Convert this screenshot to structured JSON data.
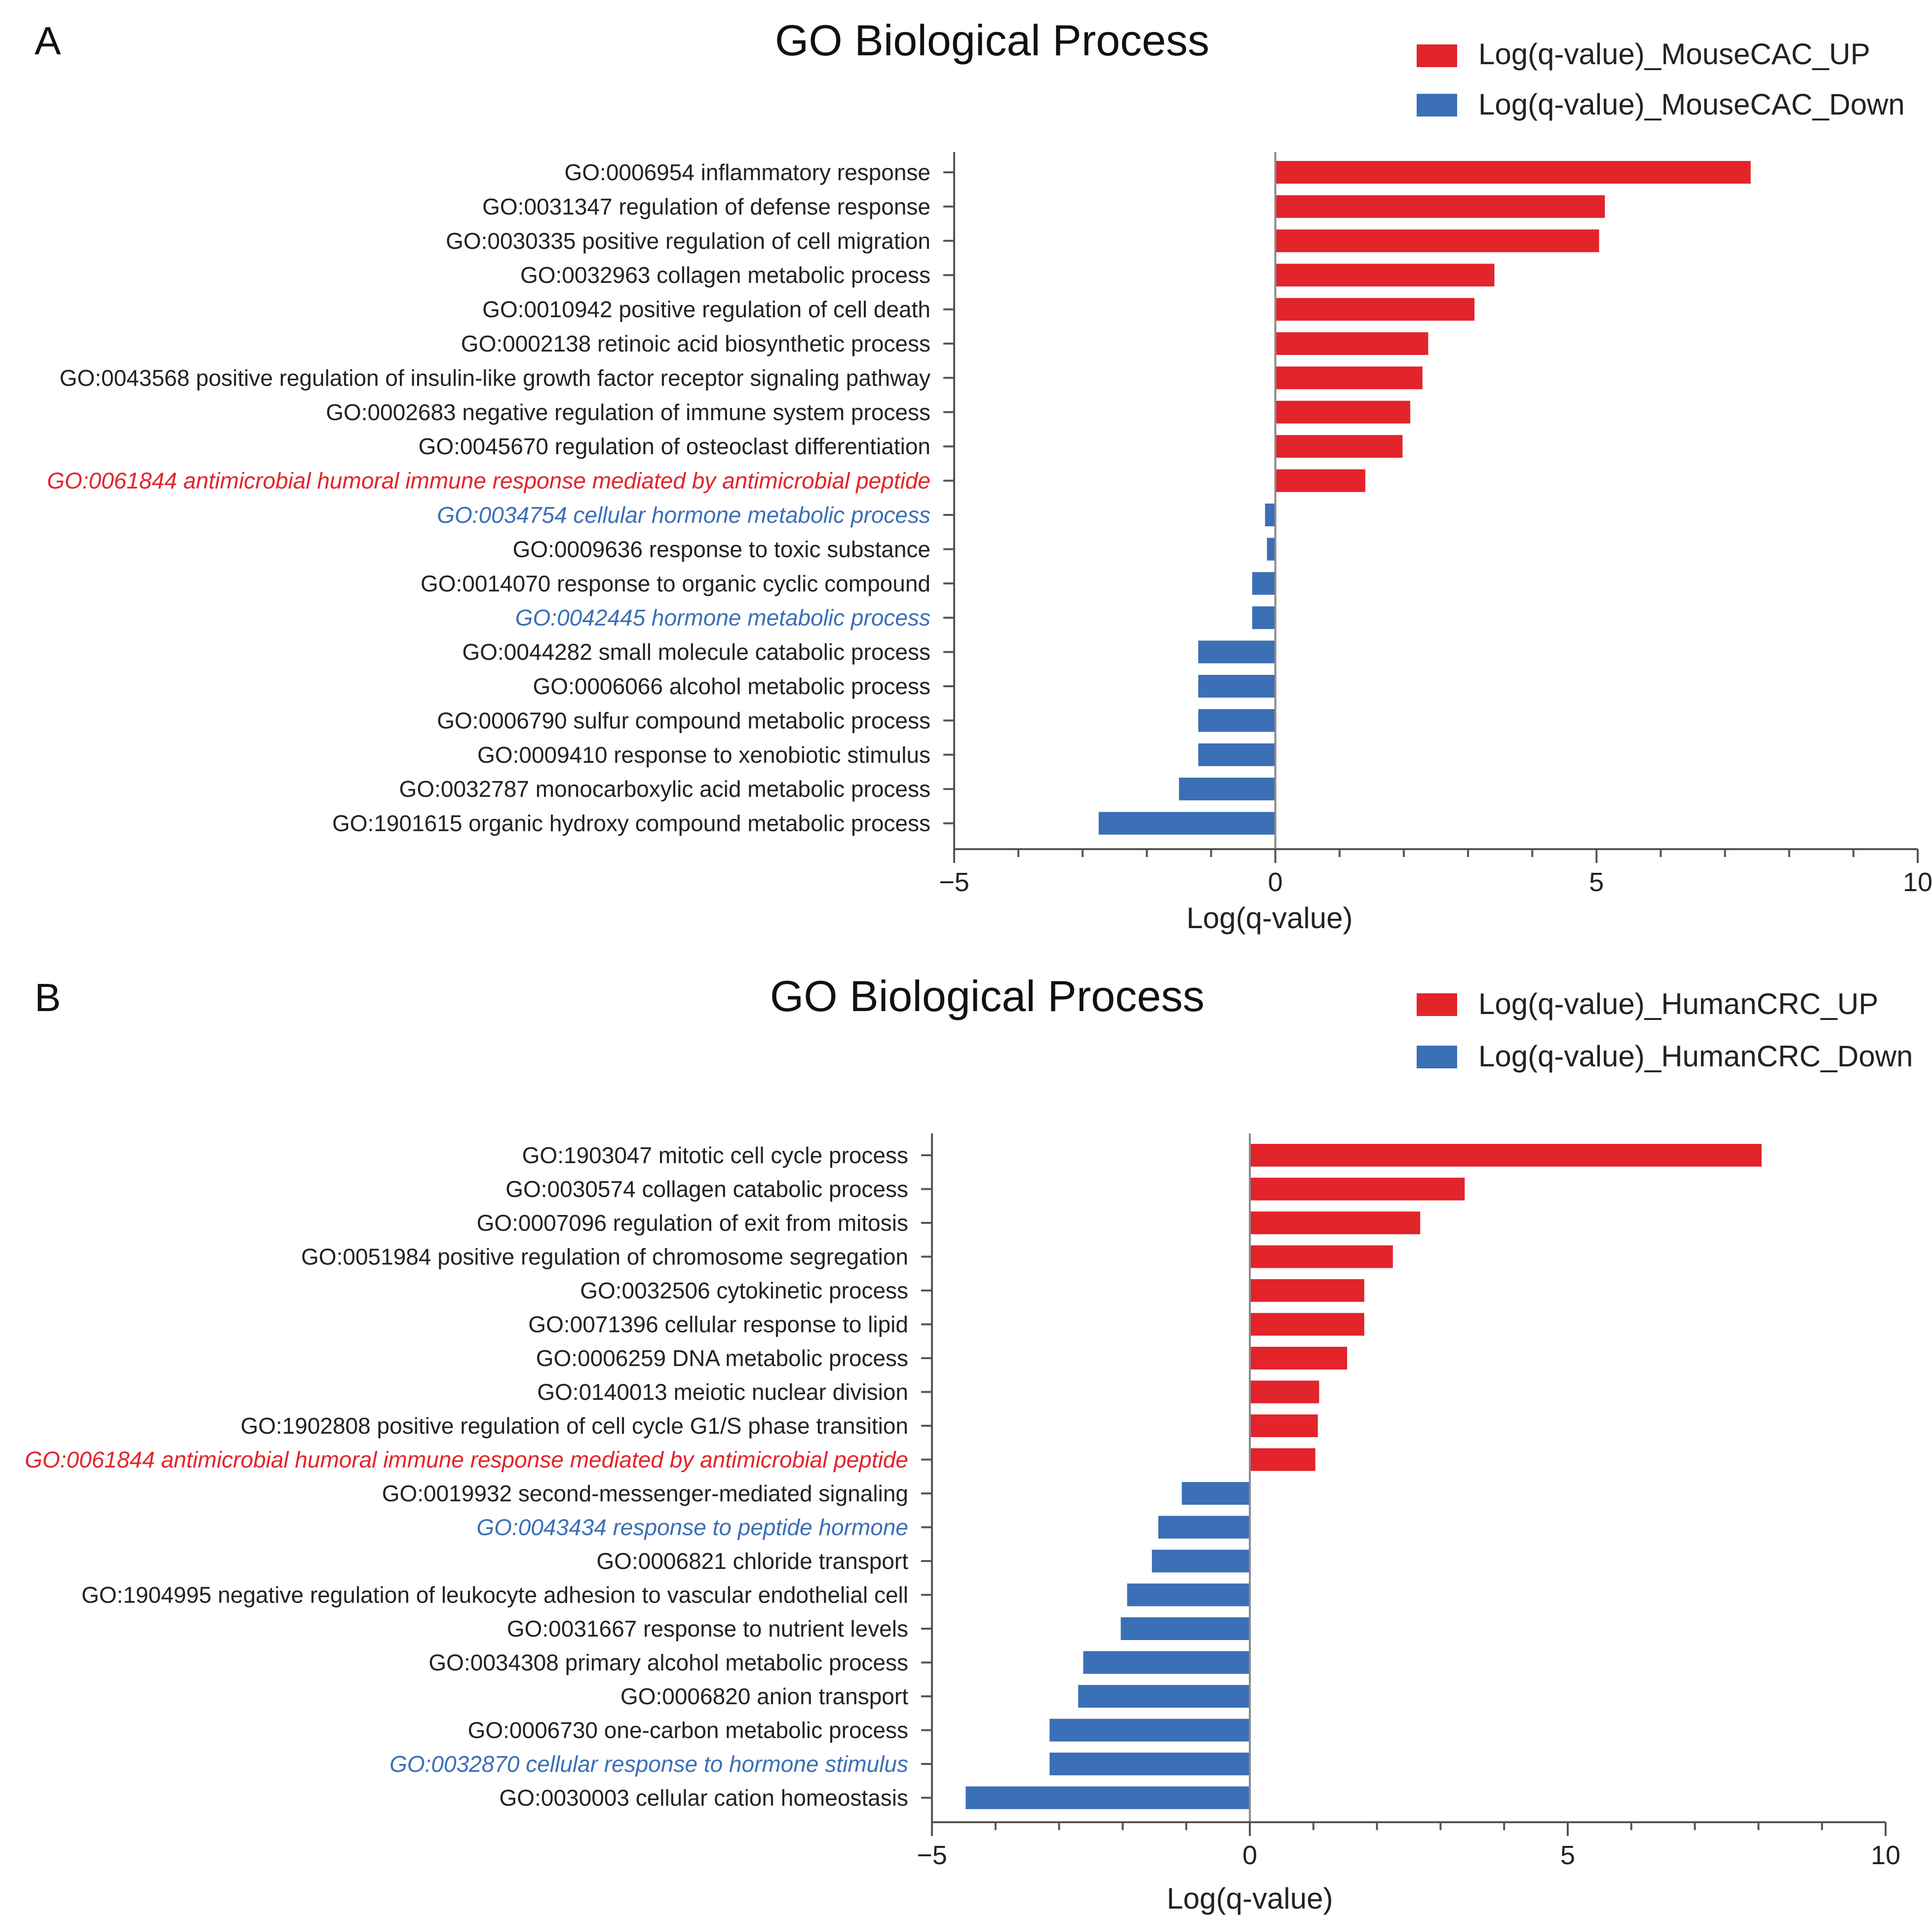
{
  "colors": {
    "up": "#e3242b",
    "down": "#3b6fb6",
    "axis": "#555555",
    "text": "#222222"
  },
  "chart_data": [
    {
      "panel_label": "A",
      "type": "bar",
      "orientation": "horizontal",
      "title": "GO Biological Process",
      "xlabel": "Log(q-value)",
      "ylabel": "",
      "xlim": [
        -5,
        10
      ],
      "xticks": [
        -5,
        0,
        5,
        10
      ],
      "xtick_labels": [
        "−5",
        "0",
        "5",
        "10"
      ],
      "legend_position": "top-right",
      "series": [
        {
          "name": "Log(q-value)_MouseCAC_UP",
          "color": "#e3242b"
        },
        {
          "name": "Log(q-value)_MouseCAC_Down",
          "color": "#3b6fb6"
        }
      ],
      "categories": [
        "GO:0006954 inflammatory response",
        "GO:0031347 regulation of defense response",
        "GO:0030335 positive regulation of cell migration",
        "GO:0032963 collagen metabolic process",
        "GO:0010942 positive regulation of cell death",
        "GO:0002138 retinoic acid biosynthetic process",
        "GO:0043568 positive regulation of insulin-like growth factor receptor signaling pathway",
        "GO:0002683 negative regulation of immune system process",
        "GO:0045670 regulation of osteoclast differentiation",
        "GO:0061844 antimicrobial humoral immune response mediated by antimicrobial peptide",
        "GO:0034754 cellular hormone metabolic process",
        "GO:0009636 response to toxic substance",
        "GO:0014070 response to organic cyclic compound",
        "GO:0042445 hormone metabolic process",
        "GO:0044282 small molecule catabolic process",
        "GO:0006066 alcohol metabolic process",
        "GO:0006790 sulfur compound metabolic process",
        "GO:0009410 response to xenobiotic stimulus",
        "GO:0032787 monocarboxylic acid metabolic process",
        "GO:1901615 organic hydroxy compound metabolic process"
      ],
      "values": [
        7.4,
        5.13,
        5.04,
        3.41,
        3.1,
        2.38,
        2.29,
        2.1,
        1.98,
        1.4,
        -0.16,
        -0.13,
        -0.36,
        -0.36,
        -1.2,
        -1.2,
        -1.2,
        -1.2,
        -1.5,
        -2.75
      ],
      "label_highlight": [
        "",
        "",
        "",
        "",
        "",
        "",
        "",
        "",
        "",
        "up",
        "down",
        "",
        "",
        "down",
        "",
        "",
        "",
        "",
        "",
        ""
      ]
    },
    {
      "panel_label": "B",
      "type": "bar",
      "orientation": "horizontal",
      "title": "GO Biological Process",
      "xlabel": "Log(q-value)",
      "ylabel": "",
      "xlim": [
        -5,
        10
      ],
      "xticks": [
        -5,
        0,
        5,
        10
      ],
      "xtick_labels": [
        "−5",
        "0",
        "5",
        "10"
      ],
      "legend_position": "top-right",
      "series": [
        {
          "name": "Log(q-value)_HumanCRC_UP",
          "color": "#e3242b"
        },
        {
          "name": "Log(q-value)_HumanCRC_Down",
          "color": "#3b6fb6"
        }
      ],
      "categories": [
        "GO:1903047 mitotic cell cycle process",
        "GO:0030574 collagen catabolic process",
        "GO:0007096 regulation of exit from mitosis",
        "GO:0051984 positive regulation of chromosome segregation",
        "GO:0032506 cytokinetic process",
        "GO:0071396 cellular response to lipid",
        "GO:0006259 DNA metabolic process",
        "GO:0140013 meiotic nuclear division",
        "GO:1902808 positive regulation of cell cycle G1/S phase transition",
        "GO:0061844 antimicrobial humoral immune response mediated by antimicrobial peptide",
        "GO:0019932 second-messenger-mediated signaling",
        "GO:0043434 response to peptide hormone",
        "GO:0006821 chloride transport",
        "GO:1904995 negative regulation of leukocyte adhesion to vascular endothelial cell",
        "GO:0031667 response to nutrient levels",
        "GO:0034308 primary alcohol metabolic process",
        "GO:0006820 anion transport",
        "GO:0006730 one-carbon metabolic process",
        "GO:0032870 cellular response to hormone stimulus",
        "GO:0030003 cellular cation homeostasis"
      ],
      "values": [
        8.05,
        3.38,
        2.68,
        2.25,
        1.8,
        1.8,
        1.53,
        1.09,
        1.07,
        1.03,
        -1.07,
        -1.44,
        -1.54,
        -1.93,
        -2.03,
        -2.62,
        -2.7,
        -3.15,
        -3.15,
        -4.47
      ],
      "label_highlight": [
        "",
        "",
        "",
        "",
        "",
        "",
        "",
        "",
        "",
        "up",
        "",
        "down",
        "",
        "",
        "",
        "",
        "",
        "",
        "down",
        ""
      ]
    }
  ]
}
